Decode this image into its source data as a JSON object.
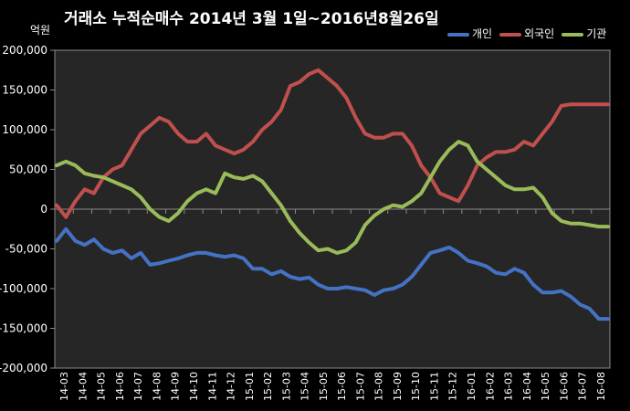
{
  "chart_data": {
    "type": "line",
    "title": "거래소 누적순매수 2014년 3월 1일~2016년8월26일",
    "ylabel": "억원",
    "ylim": [
      -200000,
      200000
    ],
    "yticks": [
      {
        "value": 200000,
        "label": "200,000"
      },
      {
        "value": 150000,
        "label": "150,000"
      },
      {
        "value": 100000,
        "label": "100,000"
      },
      {
        "value": 50000,
        "label": "50,000"
      },
      {
        "value": 0,
        "label": "0"
      },
      {
        "value": -50000,
        "label": "-50,000"
      },
      {
        "value": -100000,
        "label": "-100,000"
      },
      {
        "value": -150000,
        "label": "-150,000"
      },
      {
        "value": -200000,
        "label": "-200,000"
      }
    ],
    "categories": [
      "14-03",
      "14-04",
      "14-05",
      "14-06",
      "14-07",
      "14-08",
      "14-09",
      "14-10",
      "14-11",
      "14-12",
      "15-01",
      "15-02",
      "15-03",
      "15-04",
      "15-05",
      "15-06",
      "15-07",
      "15-08",
      "15-09",
      "15-10",
      "15-11",
      "15-12",
      "16-01",
      "16-02",
      "16-03",
      "16-04",
      "16-05",
      "16-06",
      "16-07",
      "16-08"
    ],
    "x": [
      0,
      0.5,
      1,
      1.5,
      2,
      2.5,
      3,
      3.5,
      4,
      4.5,
      5,
      5.5,
      6,
      6.5,
      7,
      7.5,
      8,
      8.5,
      9,
      9.5,
      10,
      10.5,
      11,
      11.5,
      12,
      12.5,
      13,
      13.5,
      14,
      14.5,
      15,
      15.5,
      16,
      16.5,
      17,
      17.5,
      18,
      18.5,
      19,
      19.5,
      20,
      20.5,
      21,
      21.5,
      22,
      22.5,
      23,
      23.5,
      24,
      24.5,
      25,
      25.5,
      26,
      26.5,
      27,
      27.5,
      28,
      28.5,
      29,
      29.5
    ],
    "series": [
      {
        "name": "개인",
        "color": "#4472C4",
        "values": [
          -40000,
          -25000,
          -40000,
          -45000,
          -38000,
          -50000,
          -55000,
          -52000,
          -62000,
          -55000,
          -70000,
          -68000,
          -65000,
          -62000,
          -58000,
          -55000,
          -55000,
          -58000,
          -60000,
          -58000,
          -62000,
          -75000,
          -75000,
          -82000,
          -78000,
          -85000,
          -88000,
          -86000,
          -95000,
          -100000,
          -100000,
          -98000,
          -100000,
          -102000,
          -108000,
          -102000,
          -100000,
          -95000,
          -85000,
          -70000,
          -55000,
          -52000,
          -48000,
          -55000,
          -65000,
          -68000,
          -72000,
          -80000,
          -82000,
          -75000,
          -80000,
          -95000,
          -105000,
          -105000,
          -103000,
          -110000,
          -120000,
          -125000,
          -138000,
          -138000
        ]
      },
      {
        "name": "외국인",
        "color": "#C0504D",
        "values": [
          5000,
          -10000,
          10000,
          25000,
          20000,
          40000,
          50000,
          55000,
          75000,
          95000,
          105000,
          115000,
          110000,
          95000,
          85000,
          85000,
          95000,
          80000,
          75000,
          70000,
          75000,
          85000,
          100000,
          110000,
          125000,
          155000,
          160000,
          170000,
          175000,
          165000,
          155000,
          140000,
          115000,
          95000,
          90000,
          90000,
          95000,
          95000,
          80000,
          55000,
          40000,
          20000,
          15000,
          10000,
          30000,
          55000,
          65000,
          72000,
          72000,
          75000,
          85000,
          80000,
          95000,
          110000,
          130000,
          132000,
          132000,
          132000,
          132000,
          132000
        ]
      },
      {
        "name": "기관",
        "color": "#9BBB59",
        "values": [
          55000,
          60000,
          55000,
          45000,
          42000,
          40000,
          35000,
          30000,
          25000,
          15000,
          0,
          -10000,
          -15000,
          -5000,
          10000,
          20000,
          25000,
          20000,
          45000,
          40000,
          38000,
          42000,
          35000,
          20000,
          5000,
          -15000,
          -30000,
          -42000,
          -52000,
          -50000,
          -55000,
          -52000,
          -42000,
          -20000,
          -8000,
          0,
          5000,
          3000,
          10000,
          20000,
          40000,
          60000,
          75000,
          85000,
          80000,
          60000,
          50000,
          40000,
          30000,
          25000,
          25000,
          27000,
          15000,
          -5000,
          -15000,
          -18000,
          -18000,
          -20000,
          -22000,
          -22000
        ]
      }
    ],
    "legend_position": "top-right",
    "grid": false
  }
}
